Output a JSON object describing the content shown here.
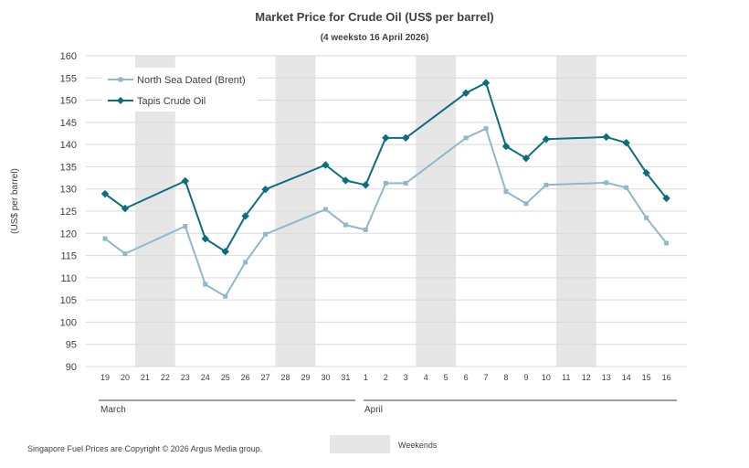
{
  "chart_data": {
    "type": "line",
    "title": "Market Price for Crude  Oil (US$ per barrel)",
    "subtitle": "(4 weeksto 16 April 2026)",
    "ylabel": "(US$ per barrel)",
    "xlabel": "",
    "ylim": [
      90,
      160
    ],
    "ytick_step": 5,
    "grid": true,
    "legend_position": "top-left",
    "x": [
      "19",
      "20",
      "21",
      "22",
      "23",
      "24",
      "25",
      "26",
      "27",
      "28",
      "29",
      "30",
      "31",
      "1",
      "2",
      "3",
      "4",
      "5",
      "6",
      "7",
      "8",
      "9",
      "10",
      "11",
      "12",
      "13",
      "14",
      "15",
      "16"
    ],
    "weekend_indices": [
      [
        2,
        3
      ],
      [
        9,
        10
      ],
      [
        16,
        17
      ],
      [
        23,
        24
      ]
    ],
    "months": [
      {
        "label": "March",
        "start_index": 0,
        "end_index": 12
      },
      {
        "label": "April",
        "start_index": 13,
        "end_index": 28
      }
    ],
    "series": [
      {
        "name": "North Sea Dated (Brent)",
        "color": "#8fb8cc",
        "marker": "square",
        "values": [
          118.8,
          115.4,
          null,
          null,
          121.6,
          108.5,
          105.8,
          113.5,
          119.8,
          null,
          null,
          125.4,
          121.9,
          120.8,
          131.3,
          131.3,
          null,
          null,
          141.5,
          143.6,
          129.4,
          126.7,
          130.9,
          null,
          null,
          131.4,
          130.3,
          123.5,
          117.8
        ]
      },
      {
        "name": "Tapis Crude Oil",
        "color": "#0b6e80",
        "marker": "diamond",
        "values": [
          128.9,
          125.6,
          null,
          null,
          131.8,
          118.8,
          115.9,
          123.9,
          129.9,
          null,
          null,
          135.4,
          131.9,
          130.9,
          141.5,
          141.5,
          null,
          null,
          151.6,
          153.9,
          139.6,
          136.9,
          141.2,
          null,
          null,
          141.7,
          140.4,
          133.6,
          127.9
        ]
      }
    ]
  },
  "footer": {
    "copyright": "Singapore Fuel Prices are Copyright © 2026 Argus Media group.",
    "weekends_label": "Weekends"
  }
}
